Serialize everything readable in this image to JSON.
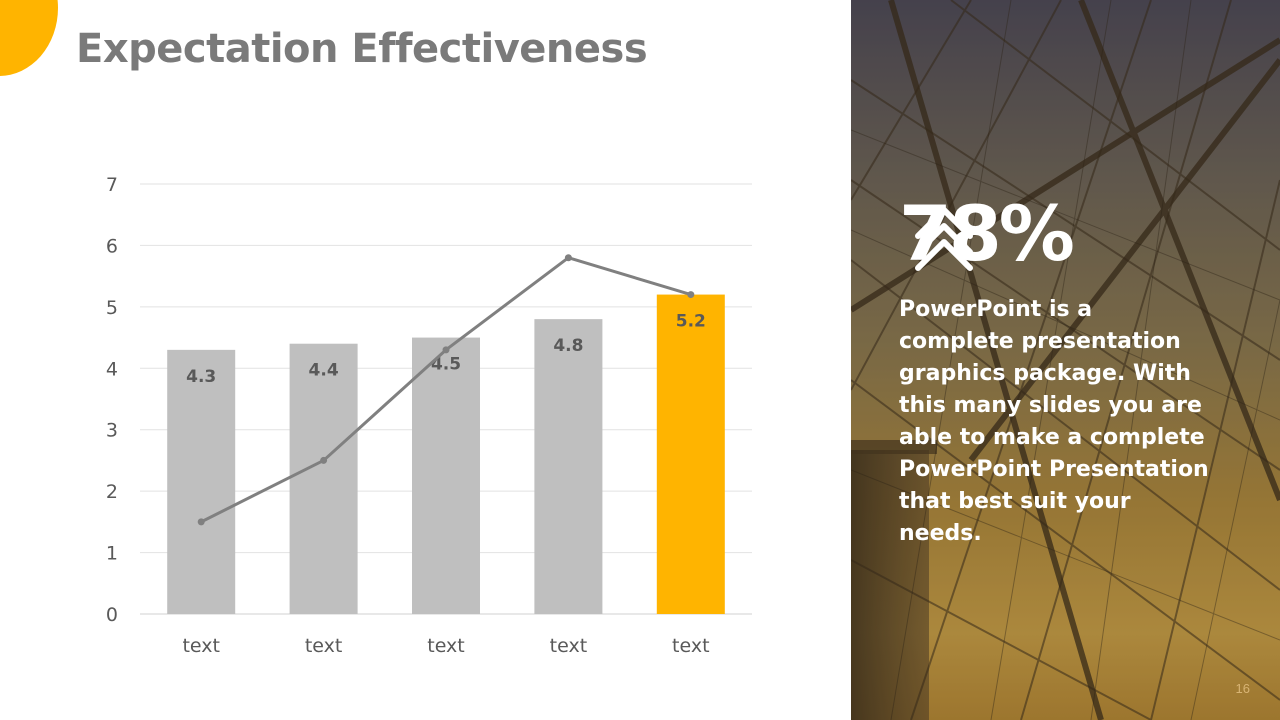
{
  "slide": {
    "title": "Expectation Effectiveness",
    "page_number": "16"
  },
  "colors": {
    "accent": "#FFB400",
    "bar": "#BFBFBF",
    "line": "#808080",
    "title": "#7A7A7A"
  },
  "stat": {
    "value": "78%",
    "icon": "double-chevron-up-icon",
    "text": "PowerPoint is a complete presentation graphics package. With this many slides you are able to make a complete PowerPoint Presentation that best suit your needs."
  },
  "chart_data": {
    "type": "bar",
    "title": "",
    "xlabel": "",
    "ylabel": "",
    "categories": [
      "text",
      "text",
      "text",
      "text",
      "text"
    ],
    "ylim": [
      0,
      7
    ],
    "yticks": [
      "0",
      "1",
      "2",
      "3",
      "4",
      "5",
      "6",
      "7"
    ],
    "grid": true,
    "series": [
      {
        "name": "bars",
        "type": "bar",
        "values": [
          4.3,
          4.4,
          4.5,
          4.8,
          5.2
        ],
        "labels": [
          "4.3",
          "4.4",
          "4.5",
          "4.8",
          "5.2"
        ],
        "highlight_index": 4
      },
      {
        "name": "line",
        "type": "line",
        "values": [
          1.5,
          2.5,
          4.3,
          5.8,
          5.2
        ]
      }
    ]
  }
}
